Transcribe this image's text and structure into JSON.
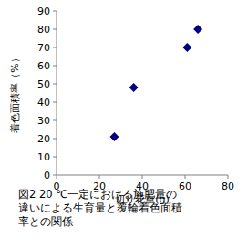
{
  "chart_data": {
    "type": "scatter",
    "title": "図2 20 ℃一定における施肥量の違いによる生育量と覆輪着色面積率との関係",
    "x_label": "切り花重(g)",
    "y_label": "着色面積率（%）",
    "x": [
      27,
      36,
      61,
      66
    ],
    "values": [
      21,
      48,
      70,
      80
    ],
    "color": "#000080",
    "marker": "diamond",
    "xlim": [
      0,
      80
    ],
    "ylim": [
      0,
      90
    ],
    "xticks": [
      0,
      20,
      40,
      60,
      80
    ],
    "yticks": [
      0,
      10,
      20,
      30,
      40,
      50,
      60,
      70,
      80,
      90
    ],
    "grid": false
  }
}
